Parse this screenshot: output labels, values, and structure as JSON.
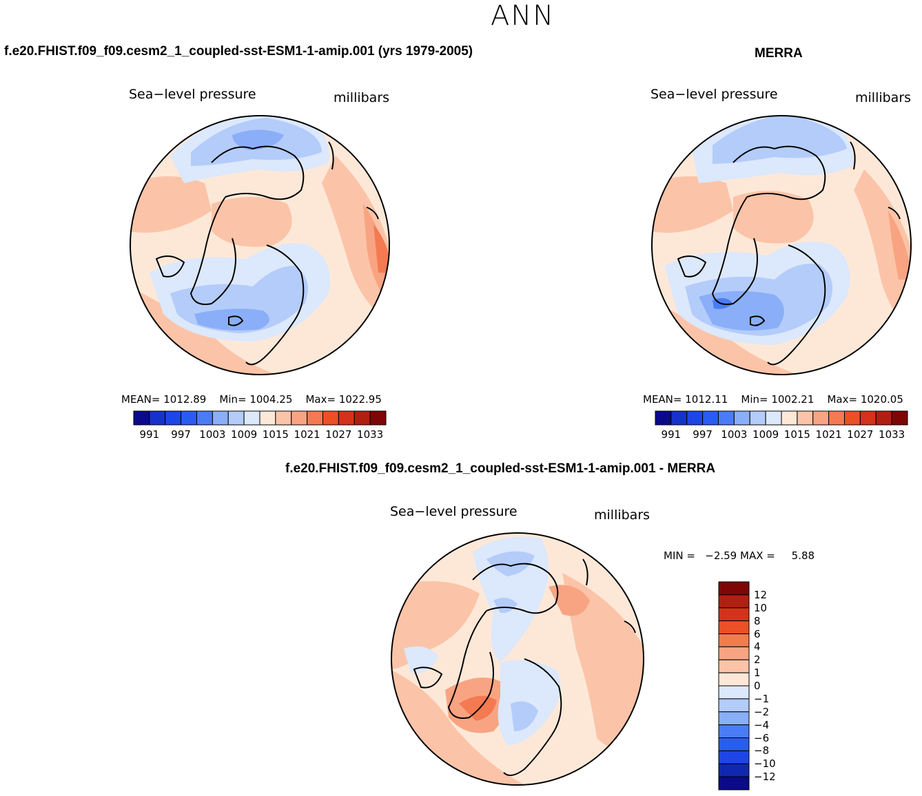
{
  "figure": {
    "title": "ANN"
  },
  "palette": {
    "seq": [
      "#0a0a8a",
      "#1732c8",
      "#1e46e6",
      "#2a5cf2",
      "#4a7cf5",
      "#8aaef8",
      "#b4ccfa",
      "#dce8fb",
      "#fde8d8",
      "#fbc4a8",
      "#f8a482",
      "#f47a52",
      "#ec5026",
      "#d4321a",
      "#b02010",
      "#7e0606"
    ],
    "diff": [
      "#0a0a8a",
      "#1027b0",
      "#1e46e6",
      "#2a5cf2",
      "#4a7cf5",
      "#8aaef8",
      "#b4ccfa",
      "#dce8fb",
      "#fde8d8",
      "#fbc4a8",
      "#f8a482",
      "#f47a52",
      "#ec5026",
      "#d4321a",
      "#b02010",
      "#7e0606"
    ]
  },
  "panels": [
    {
      "case_title": "f.e20.FHIST.f09_f09.cesm2_1_coupled-sst-ESM1-1-amip.001 (yrs 1979-2005)",
      "variable": "Sea−level pressure",
      "units": "millibars",
      "stats": {
        "mean_label": "MEAN=",
        "mean": "1012.89",
        "min_label": "Min=",
        "min": "1004.25",
        "max_label": "Max=",
        "max": "1022.95"
      },
      "colorbar_ticks": [
        "991",
        "997",
        "1003",
        "1009",
        "1015",
        "1021",
        "1027",
        "1033"
      ]
    },
    {
      "case_title": "MERRA",
      "variable": "Sea−level pressure",
      "units": "millibars",
      "stats": {
        "mean_label": "MEAN=",
        "mean": "1012.11",
        "min_label": "Min=",
        "min": "1002.21",
        "max_label": "Max=",
        "max": "1020.05"
      },
      "colorbar_ticks": [
        "991",
        "997",
        "1003",
        "1009",
        "1015",
        "1021",
        "1027",
        "1033"
      ]
    },
    {
      "case_title": "f.e20.FHIST.f09_f09.cesm2_1_coupled-sst-ESM1-1-amip.001 - MERRA",
      "variable": "Sea−level pressure",
      "units": "millibars",
      "stats": {
        "min_label": "MIN =",
        "min": "−2.59",
        "max_label": "MAX =",
        "max": "5.88"
      },
      "colorbar_ticks": [
        "12",
        "10",
        "8",
        "6",
        "4",
        "2",
        "1",
        "0",
        "−1",
        "−2",
        "−4",
        "−6",
        "−8",
        "−10",
        "−12"
      ]
    }
  ]
}
